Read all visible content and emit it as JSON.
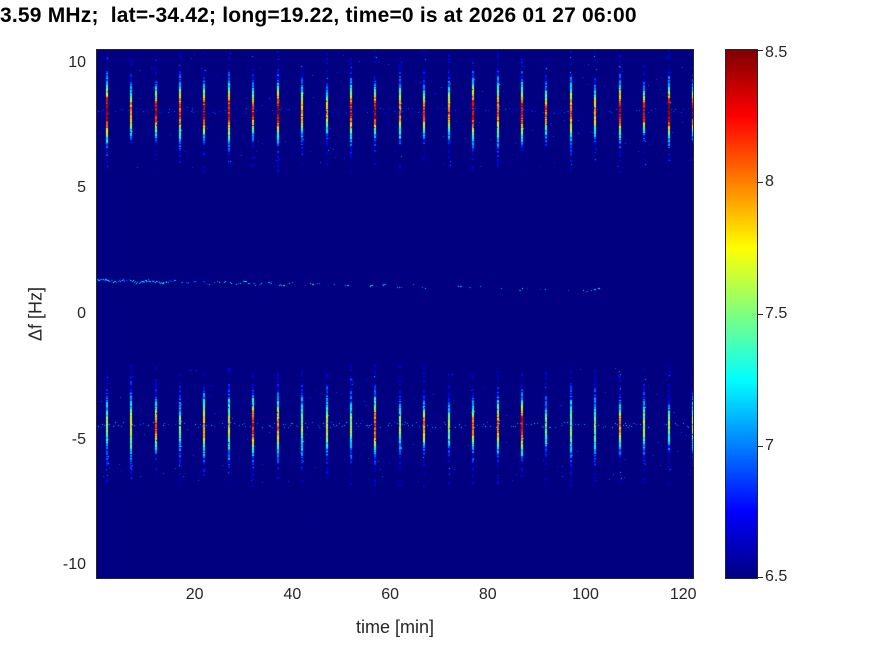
{
  "chart_data": {
    "type": "heatmap",
    "title": "3.59 MHz;  lat=-34.42; long=19.22, time=0 is at 2026 01 27 06:00",
    "xlabel": "time [min]",
    "ylabel": "Δf [Hz]",
    "xlim": [
      0,
      122
    ],
    "ylim": [
      -10.5,
      10.5
    ],
    "xticks": [
      20,
      40,
      60,
      80,
      100,
      120
    ],
    "yticks": [
      10,
      5,
      0,
      -5,
      -10
    ],
    "grid": false,
    "colormap": "jet",
    "background_value": 6.5,
    "colorbar": {
      "min": 6.5,
      "max": 8.5,
      "ticks": [
        8.5,
        8,
        7.5,
        7,
        6.5
      ],
      "position": "right"
    },
    "features": [
      {
        "name": "upper-echo-band",
        "kind": "periodic-vertical-streaks",
        "center_hz": 8.1,
        "half_height_hz": 1.05,
        "first_pulse_min": 2,
        "pulse_period_min": 5,
        "last_pulse_min": 122,
        "peak_value_range": [
          7.9,
          8.5
        ],
        "interpulse_dot_value": 6.85
      },
      {
        "name": "lower-echo-band",
        "kind": "periodic-vertical-streaks",
        "center_hz": -4.4,
        "half_height_hz": 1.1,
        "first_pulse_min": 2,
        "pulse_period_min": 5,
        "last_pulse_min": 122,
        "peak_value_range": [
          7.5,
          8.3
        ],
        "interpulse_dot_value": 7.05
      },
      {
        "name": "faint-drift-trace",
        "kind": "dotted-trace",
        "start_min": 0,
        "end_min": 110,
        "start_hz": 1.35,
        "end_hz": 0.95,
        "value_range": [
          6.8,
          7.3
        ],
        "dense_until_min": 15
      }
    ]
  }
}
